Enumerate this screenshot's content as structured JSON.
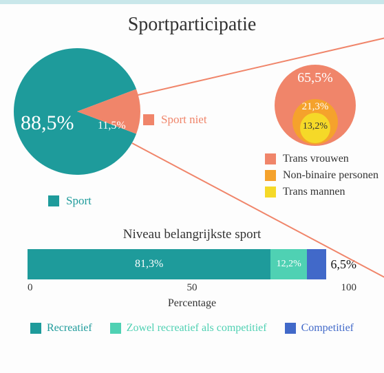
{
  "title": "Sportparticipatie",
  "colors": {
    "teal": "#1e9b9b",
    "salmon": "#f0856a",
    "orange": "#f5a22c",
    "yellow": "#f5d928",
    "mint": "#4fd1b3",
    "blue": "#4169c9",
    "topbar": "#c9e7ea",
    "bg": "#fdfdfd",
    "text_dark": "#333333"
  },
  "pie": {
    "type": "pie",
    "radius": 92,
    "slices": [
      {
        "label": "88,5%",
        "value": 88.5,
        "color": "#1e9b9b",
        "name": "Sport"
      },
      {
        "label": "11,5%",
        "value": 11.5,
        "color": "#f0856a",
        "name": "Sport niet"
      }
    ],
    "main_label_fontsize": 30,
    "slice_label_fontsize": 16,
    "label_color": "#ffffff"
  },
  "pie_legend": {
    "sport_niet": {
      "swatch": "#f0856a",
      "text": "Sport niet",
      "text_color": "#f0856a"
    },
    "sport": {
      "swatch": "#1e9b9b",
      "text": "Sport",
      "text_color": "#1e9b9b"
    }
  },
  "nested": {
    "type": "nested-circles",
    "circles": [
      {
        "label": "65,5%",
        "diameter": 118,
        "color": "#f0856a",
        "text_color": "#ffffff",
        "fontsize": 20
      },
      {
        "label": "21,3%",
        "diameter": 66,
        "color": "#f5a22c",
        "text_color": "#ffffff",
        "fontsize": 15
      },
      {
        "label": "13,2%",
        "diameter": 44,
        "color": "#f5d928",
        "text_color": "#333333",
        "fontsize": 14
      }
    ],
    "legend": [
      {
        "swatch": "#f0856a",
        "text": "Trans vrouwen"
      },
      {
        "swatch": "#f5a22c",
        "text": "Non-binaire personen"
      },
      {
        "swatch": "#f5d928",
        "text": "Trans mannen"
      }
    ]
  },
  "bar": {
    "type": "stacked-bar",
    "title": "Niveau belangrijkste sport",
    "title_fontsize": 19,
    "segments": [
      {
        "label": "81,3%",
        "value": 81.3,
        "color": "#1e9b9b",
        "text_color": "#ffffff"
      },
      {
        "label": "12,2%",
        "value": 12.2,
        "color": "#4fd1b3",
        "text_color": "#ffffff"
      },
      {
        "label": "6,5%",
        "value": 6.5,
        "color": "#4169c9",
        "text_color": "#111111",
        "external_label": true
      }
    ],
    "axis": {
      "label": "Percentage",
      "ticks": [
        0,
        50,
        100
      ],
      "fontsize": 15
    },
    "legend": [
      {
        "swatch": "#1e9b9b",
        "text": "Recreatief",
        "text_color": "#1e9b9b"
      },
      {
        "swatch": "#4fd1b3",
        "text": "Zowel recreatief als competitief",
        "text_color": "#4fd1b3"
      },
      {
        "swatch": "#4169c9",
        "text": "Competitief",
        "text_color": "#4169c9"
      }
    ]
  }
}
